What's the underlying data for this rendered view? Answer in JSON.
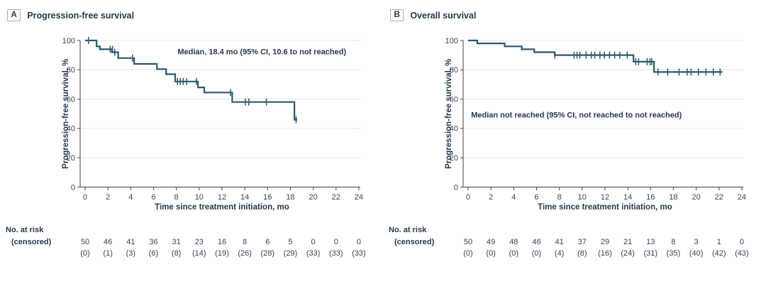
{
  "colors": {
    "curve": "#2c596b",
    "navy_text": "#26384e",
    "tick_text": "#3b4450",
    "risk_text": "#374357",
    "gridline": "#e9eaec",
    "axis_line": "#5a6066",
    "background": "#ffffff"
  },
  "chart_data": [
    {
      "type": "line",
      "subtype": "kaplan_meier_step",
      "badge": "A",
      "title": "Progression-free survival",
      "annotation": {
        "text": "Median, 18.4 mo (95% CI, 10.6 to not reached)",
        "x_month": 15.5,
        "y_pct": 92.5
      },
      "xlabel": "Time since treatment initiation, mo",
      "ylabel": "Progression-free survival, %",
      "xlim": [
        0,
        24
      ],
      "ylim": [
        0,
        100
      ],
      "grid": true,
      "legend": "none",
      "xticks": [
        0,
        2,
        4,
        6,
        8,
        10,
        12,
        14,
        16,
        18,
        20,
        22,
        24
      ],
      "yticks": [
        0,
        20,
        40,
        60,
        80,
        100
      ],
      "steps": [
        [
          0,
          100
        ],
        [
          1.0,
          96
        ],
        [
          1.3,
          94
        ],
        [
          2.35,
          92
        ],
        [
          2.9,
          88
        ],
        [
          4.3,
          84
        ],
        [
          6.3,
          80.5
        ],
        [
          7.1,
          77
        ],
        [
          7.9,
          72
        ],
        [
          9.9,
          68
        ],
        [
          10.45,
          64.5
        ],
        [
          12.9,
          58
        ],
        [
          18.35,
          46
        ]
      ],
      "curve_end_month": 18.6,
      "censor_marks": [
        [
          0.3,
          100
        ],
        [
          2.2,
          94
        ],
        [
          2.4,
          94
        ],
        [
          2.6,
          92
        ],
        [
          4.15,
          88
        ],
        [
          8.1,
          72
        ],
        [
          8.35,
          72
        ],
        [
          8.6,
          72
        ],
        [
          8.9,
          72
        ],
        [
          9.75,
          72
        ],
        [
          12.75,
          64.5
        ],
        [
          14.05,
          58
        ],
        [
          14.35,
          58
        ],
        [
          15.9,
          58
        ],
        [
          18.5,
          46
        ]
      ],
      "at_risk": {
        "label": "No. at risk",
        "censored_label": "(censored)",
        "months": [
          0,
          2,
          4,
          6,
          8,
          10,
          12,
          14,
          16,
          18,
          20,
          22,
          24
        ],
        "n": [
          "50",
          "46",
          "41",
          "36",
          "31",
          "23",
          "16",
          "8",
          "6",
          "5",
          "0",
          "0",
          "0"
        ],
        "censored": [
          "(0)",
          "(1)",
          "(3)",
          "(6)",
          "(8)",
          "(14)",
          "(19)",
          "(26)",
          "(28)",
          "(29)",
          "(33)",
          "(33)",
          "(33)"
        ]
      }
    },
    {
      "type": "line",
      "subtype": "kaplan_meier_step",
      "badge": "B",
      "title": "Overall survival",
      "annotation": {
        "text": "Median not reached (95% CI, not reached to not reached)",
        "x_month": 9.5,
        "y_pct": 49.5
      },
      "xlabel": "Time since treatment initiation, mo",
      "ylabel": "Progression-free survival, %",
      "xlim": [
        0,
        24
      ],
      "ylim": [
        0,
        100
      ],
      "grid": true,
      "legend": "none",
      "xticks": [
        0,
        2,
        4,
        6,
        8,
        10,
        12,
        14,
        16,
        18,
        20,
        22,
        24
      ],
      "yticks": [
        0,
        20,
        40,
        60,
        80,
        100
      ],
      "steps": [
        [
          0,
          100
        ],
        [
          0.8,
          98
        ],
        [
          3.2,
          96
        ],
        [
          4.7,
          94
        ],
        [
          5.8,
          92
        ],
        [
          7.6,
          90
        ],
        [
          14.5,
          85.5
        ],
        [
          16.3,
          78.5
        ]
      ],
      "curve_end_month": 22.3,
      "censor_marks": [
        [
          7.6,
          90
        ],
        [
          9.3,
          90
        ],
        [
          9.55,
          90
        ],
        [
          9.8,
          90
        ],
        [
          10.35,
          90
        ],
        [
          10.8,
          90
        ],
        [
          11.1,
          90
        ],
        [
          11.55,
          90
        ],
        [
          11.95,
          90
        ],
        [
          12.4,
          90
        ],
        [
          12.85,
          90
        ],
        [
          13.3,
          90
        ],
        [
          13.95,
          90
        ],
        [
          14.7,
          85.5
        ],
        [
          14.95,
          85.5
        ],
        [
          15.7,
          85.5
        ],
        [
          15.95,
          85.5
        ],
        [
          16.1,
          85.5
        ],
        [
          16.65,
          78.5
        ],
        [
          17.5,
          78.5
        ],
        [
          18.5,
          78.5
        ],
        [
          19.2,
          78.5
        ],
        [
          19.55,
          78.5
        ],
        [
          20.2,
          78.5
        ],
        [
          20.85,
          78.5
        ],
        [
          21.5,
          78.5
        ],
        [
          22.1,
          78.5
        ]
      ],
      "at_risk": {
        "label": "No. at risk",
        "censored_label": "(censored)",
        "months": [
          0,
          2,
          4,
          6,
          8,
          10,
          12,
          14,
          16,
          18,
          20,
          22,
          24
        ],
        "n": [
          "50",
          "49",
          "48",
          "46",
          "41",
          "37",
          "29",
          "21",
          "13",
          "8",
          "3",
          "1",
          "0"
        ],
        "censored": [
          "(0)",
          "(0)",
          "(0)",
          "(0)",
          "(4)",
          "(8)",
          "(16)",
          "(24)",
          "(31)",
          "(35)",
          "(40)",
          "(42)",
          "(43)"
        ]
      }
    }
  ]
}
